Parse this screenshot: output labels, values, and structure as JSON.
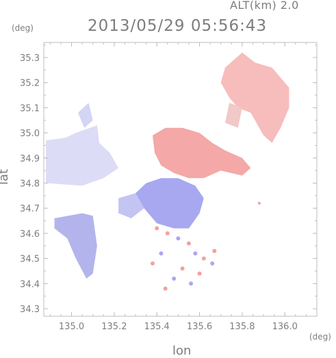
{
  "header": {
    "altitude_label": "ALT(km) 2.0",
    "timestamp": "2013/05/29 05:56:43"
  },
  "axes": {
    "lat_unit": "(deg)",
    "lon_unit": "(deg)",
    "xlabel": "lon",
    "ylabel": "lat",
    "x_ticks": [
      "135.0",
      "135.2",
      "135.4",
      "135.6",
      "135.8",
      "136.0"
    ],
    "y_ticks": [
      "34.3",
      "34.4",
      "34.5",
      "34.6",
      "34.7",
      "34.8",
      "34.9",
      "35.0",
      "35.1",
      "35.2",
      "35.3"
    ]
  },
  "chart_data": {
    "type": "heatmap",
    "xlim": [
      134.87,
      136.15
    ],
    "ylim": [
      34.27,
      35.36
    ],
    "grid": false,
    "colors": {
      "positive": "#f4a0a0",
      "negative": "#a8a8f0",
      "zero": "#e8e8f4",
      "frame": "#bdbdbd"
    },
    "regions": [
      {
        "sign": "negative",
        "desc": "west block",
        "lon_range": [
          134.88,
          135.23
        ],
        "lat_range": [
          34.79,
          35.03
        ]
      },
      {
        "sign": "negative",
        "desc": "southwest block",
        "lon_range": [
          134.92,
          135.12
        ],
        "lat_range": [
          34.43,
          34.68
        ]
      },
      {
        "sign": "positive",
        "desc": "north-east",
        "lon_range": [
          135.72,
          136.03
        ],
        "lat_range": [
          34.92,
          35.33
        ]
      },
      {
        "sign": "positive",
        "desc": "central",
        "lon_range": [
          135.38,
          135.76
        ],
        "lat_range": [
          34.82,
          35.03
        ]
      },
      {
        "sign": "negative",
        "desc": "center south",
        "lon_range": [
          135.34,
          135.62
        ],
        "lat_range": [
          34.6,
          34.84
        ]
      }
    ]
  }
}
